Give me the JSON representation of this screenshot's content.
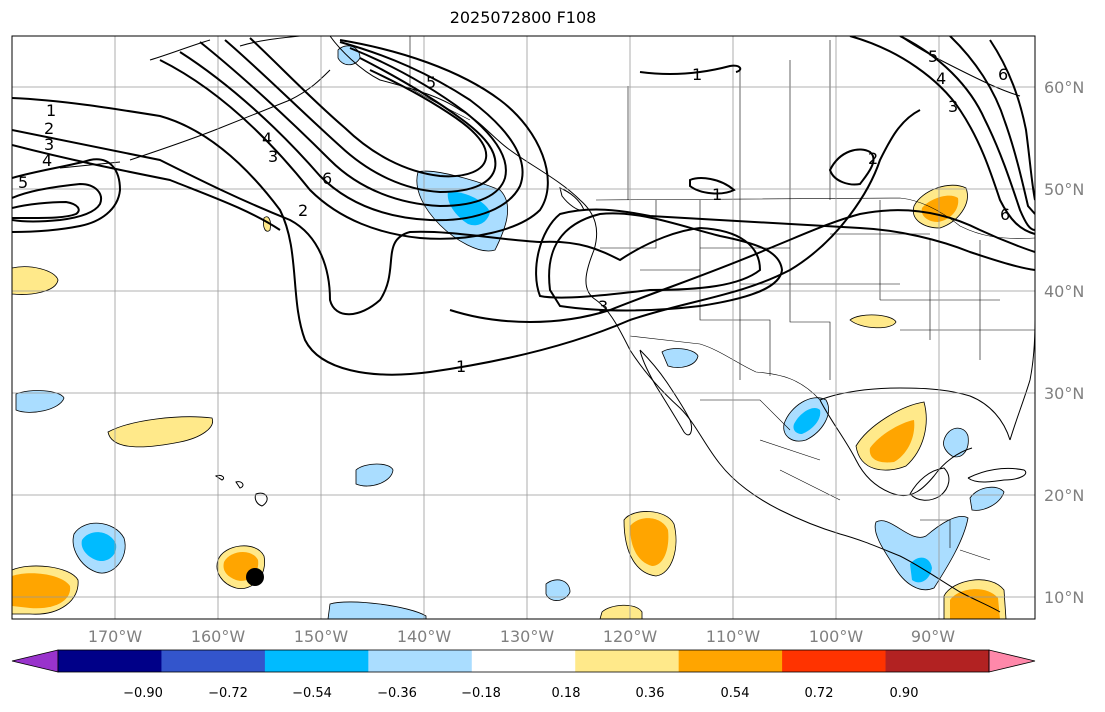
{
  "title": "2025072800 F108",
  "map": {
    "lat_labels": [
      "60°N",
      "50°N",
      "40°N",
      "30°N",
      "20°N",
      "10°N"
    ],
    "lon_labels": [
      "170°W",
      "160°W",
      "150°W",
      "140°W",
      "130°W",
      "120°W",
      "110°W",
      "100°W",
      "90°W"
    ],
    "contour_labels": [
      "1",
      "2",
      "3",
      "4",
      "5",
      "6"
    ],
    "marker": "storm-position-dot"
  },
  "colorbar": {
    "ticks": [
      "−0.90",
      "−0.72",
      "−0.54",
      "−0.36",
      "−0.18",
      "0.18",
      "0.36",
      "0.54",
      "0.72",
      "0.90"
    ],
    "colors": [
      "#9933cc",
      "#000088",
      "#3355cc",
      "#00bbff",
      "#aaddff",
      "#ffffff",
      "#ffe98a",
      "#ffa500",
      "#ff3300",
      "#b22222",
      "#ff88aa"
    ]
  },
  "colors": {
    "land_outline": "#000000",
    "grid": "#999999",
    "contour": "#000000"
  }
}
